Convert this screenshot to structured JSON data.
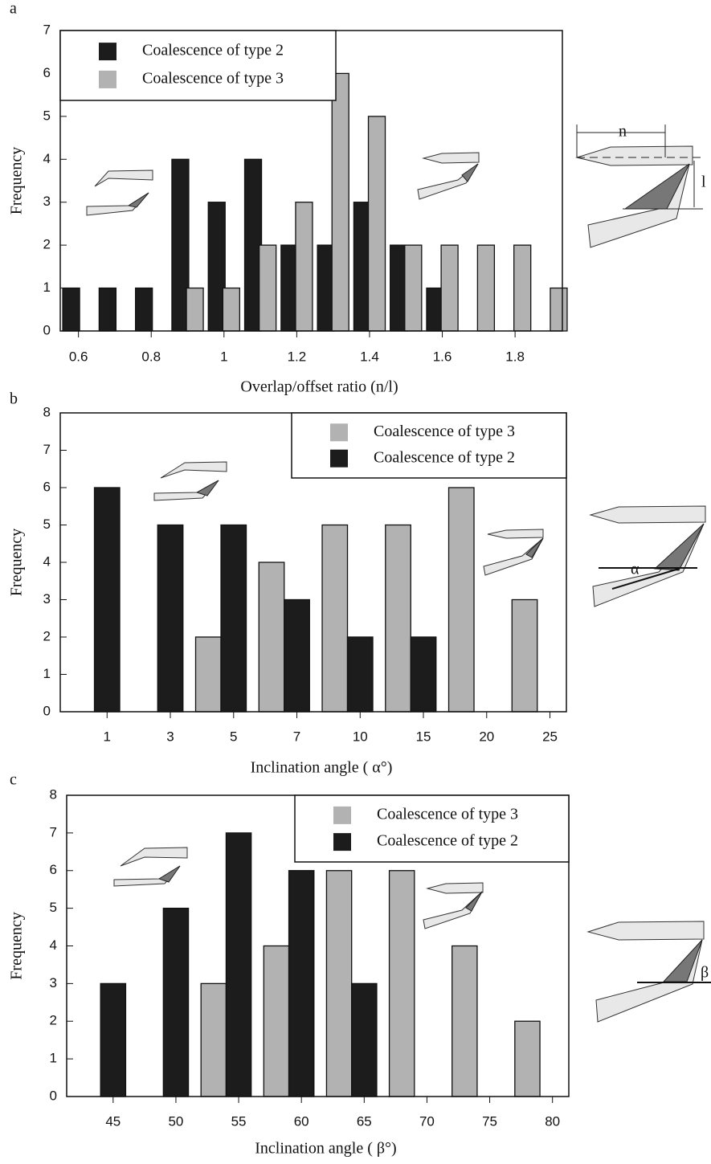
{
  "chart_data": [
    {
      "type": "bar",
      "label": "a",
      "x_label": "Overlap/offset ratio (n/l)",
      "y_label": "Frequency",
      "series": [
        {
          "name": "Coalescence of type 2",
          "color": "#1c1c1c",
          "x": [
            0.58,
            0.68,
            0.78,
            0.88,
            0.98,
            1.08,
            1.18,
            1.28,
            1.38,
            1.48,
            1.58
          ],
          "values": [
            1,
            1,
            1,
            4,
            3,
            4,
            2,
            2,
            3,
            2,
            1
          ]
        },
        {
          "name": "Coalescence of type 3",
          "color": "#b2b2b2",
          "x": [
            0.92,
            1.02,
            1.12,
            1.22,
            1.32,
            1.42,
            1.52,
            1.62,
            1.72,
            1.82,
            1.92
          ],
          "values": [
            1,
            1,
            2,
            3,
            6,
            5,
            2,
            2,
            2,
            2,
            1
          ]
        }
      ],
      "xlim": [
        0.55,
        1.93
      ],
      "xticks": [
        0.6,
        0.8,
        1,
        1.2,
        1.4,
        1.6,
        1.8
      ],
      "ylim": [
        0,
        7
      ],
      "yticks": [
        0,
        1,
        2,
        3,
        4,
        5,
        6,
        7
      ],
      "legend": "top-left",
      "annotations": [
        "n",
        "l"
      ]
    },
    {
      "type": "bar",
      "label": "b",
      "x_label": "Inclination angle ( α°)",
      "y_label": "Frequency",
      "categories": [
        "1",
        "3",
        "5",
        "7",
        "10",
        "15",
        "20",
        "25"
      ],
      "series": [
        {
          "name": "Coalescence of type 3",
          "color": "#b2b2b2",
          "values": [
            null,
            null,
            2,
            4,
            5,
            5,
            6,
            3
          ]
        },
        {
          "name": "Coalescence of type 2",
          "color": "#1c1c1c",
          "values": [
            6,
            5,
            5,
            3,
            2,
            2,
            null,
            null
          ]
        }
      ],
      "ylim": [
        0,
        8
      ],
      "yticks": [
        0,
        1,
        2,
        3,
        4,
        5,
        6,
        7,
        8
      ],
      "legend": "top-right",
      "annotations": [
        "α"
      ]
    },
    {
      "type": "bar",
      "label": "c",
      "x_label": "Inclination angle ( β°)",
      "y_label": "Frequency",
      "categories": [
        "45",
        "50",
        "55",
        "60",
        "65",
        "70",
        "75",
        "80"
      ],
      "series": [
        {
          "name": "Coalescence of type 3",
          "color": "#b2b2b2",
          "values": [
            null,
            null,
            3,
            4,
            6,
            6,
            4,
            2
          ]
        },
        {
          "name": "Coalescence of type 2",
          "color": "#1c1c1c",
          "values": [
            3,
            5,
            7,
            6,
            3,
            null,
            null,
            null
          ]
        }
      ],
      "ylim": [
        0,
        8
      ],
      "yticks": [
        0,
        1,
        2,
        3,
        4,
        5,
        6,
        7,
        8
      ],
      "legend": "top-right",
      "annotations": [
        "β"
      ]
    }
  ]
}
